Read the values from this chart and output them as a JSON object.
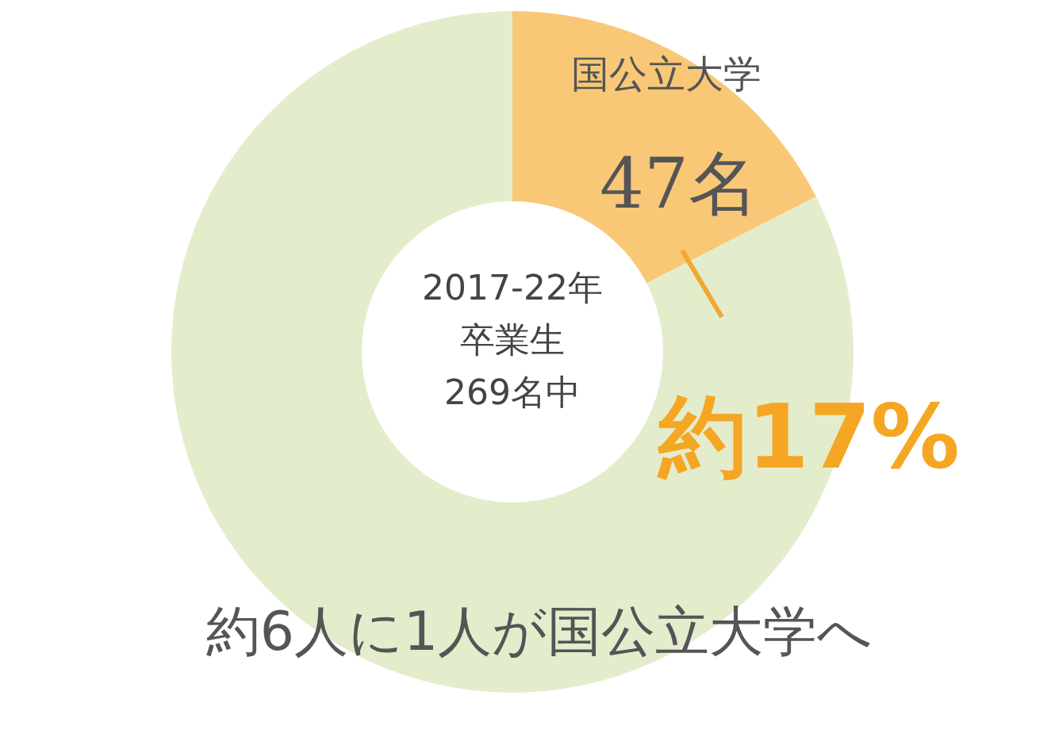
{
  "chart_data": {
    "type": "donut",
    "categories": [
      "国公立大学",
      null
    ],
    "values": [
      47,
      222
    ],
    "colors": [
      "#f9c877",
      "#e3edcc"
    ],
    "value_labels": [
      "47名",
      null
    ],
    "annotations": [
      "2017-22年",
      "卒業生",
      "269名中",
      "約17%",
      "約6人に1人が国公立大学へ"
    ]
  }
}
